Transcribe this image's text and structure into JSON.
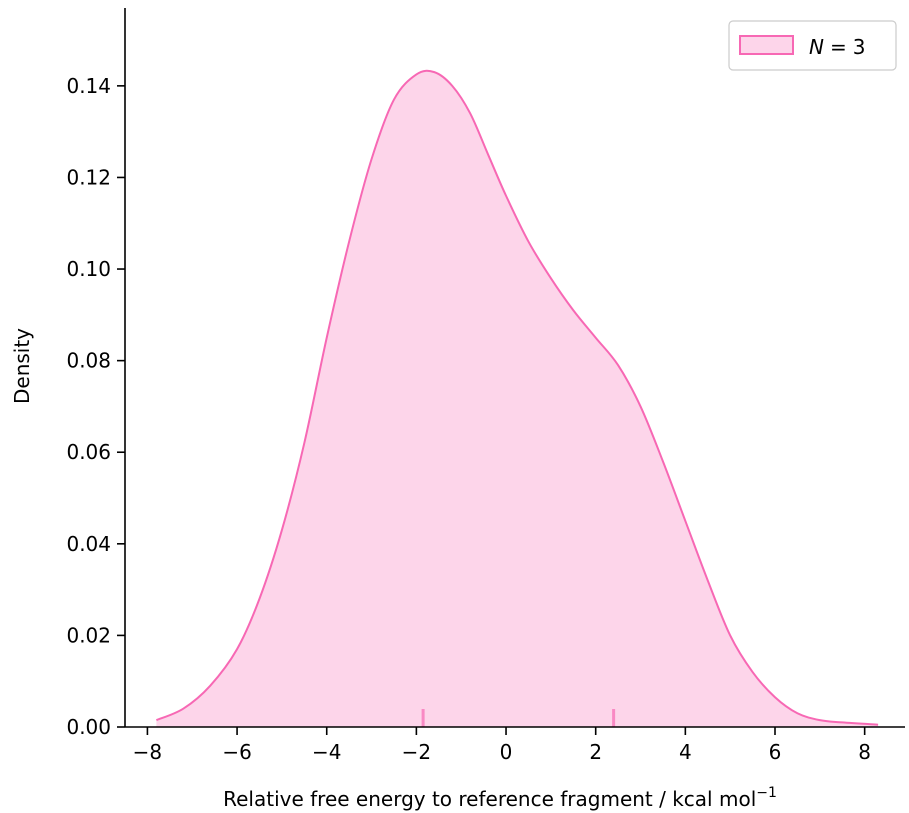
{
  "chart_data": {
    "type": "area",
    "title": "",
    "xlabel": "Relative free energy to reference fragment / kcal mol",
    "xlabel_superscript": "−1",
    "ylabel": "Density",
    "xlim": [
      -8.5,
      8.9
    ],
    "ylim": [
      0,
      0.157
    ],
    "x_ticks": [
      -8,
      -6,
      -4,
      -2,
      0,
      2,
      4,
      6,
      8
    ],
    "x_tick_labels": [
      "−8",
      "−6",
      "−4",
      "−2",
      "0",
      "2",
      "4",
      "6",
      "8"
    ],
    "y_ticks": [
      0,
      0.02,
      0.04,
      0.06,
      0.08,
      0.1,
      0.12,
      0.14
    ],
    "y_tick_labels": [
      "0.00",
      "0.02",
      "0.04",
      "0.06",
      "0.08",
      "0.10",
      "0.12",
      "0.14"
    ],
    "grid": false,
    "legend_position": "top-right",
    "series": [
      {
        "name": "N = 3",
        "legend_var": "N",
        "legend_value": "3",
        "color": "#f768b4",
        "fill_color": "#fdd5ea",
        "x": [
          -7.8,
          -7.2,
          -6.6,
          -6.0,
          -5.5,
          -5.0,
          -4.5,
          -4.0,
          -3.5,
          -3.0,
          -2.5,
          -2.0,
          -1.6,
          -1.2,
          -0.8,
          -0.4,
          0.0,
          0.5,
          1.0,
          1.5,
          2.0,
          2.5,
          3.0,
          3.5,
          4.0,
          4.5,
          5.0,
          5.5,
          6.0,
          6.5,
          7.0,
          7.5,
          8.3
        ],
        "y": [
          0.0015,
          0.004,
          0.009,
          0.017,
          0.028,
          0.043,
          0.062,
          0.085,
          0.106,
          0.124,
          0.137,
          0.1425,
          0.143,
          0.14,
          0.134,
          0.125,
          0.116,
          0.106,
          0.098,
          0.091,
          0.085,
          0.079,
          0.07,
          0.058,
          0.045,
          0.032,
          0.02,
          0.012,
          0.0065,
          0.003,
          0.0015,
          0.001,
          0.0005
        ]
      }
    ],
    "rug": [
      -1.85,
      2.4
    ]
  }
}
